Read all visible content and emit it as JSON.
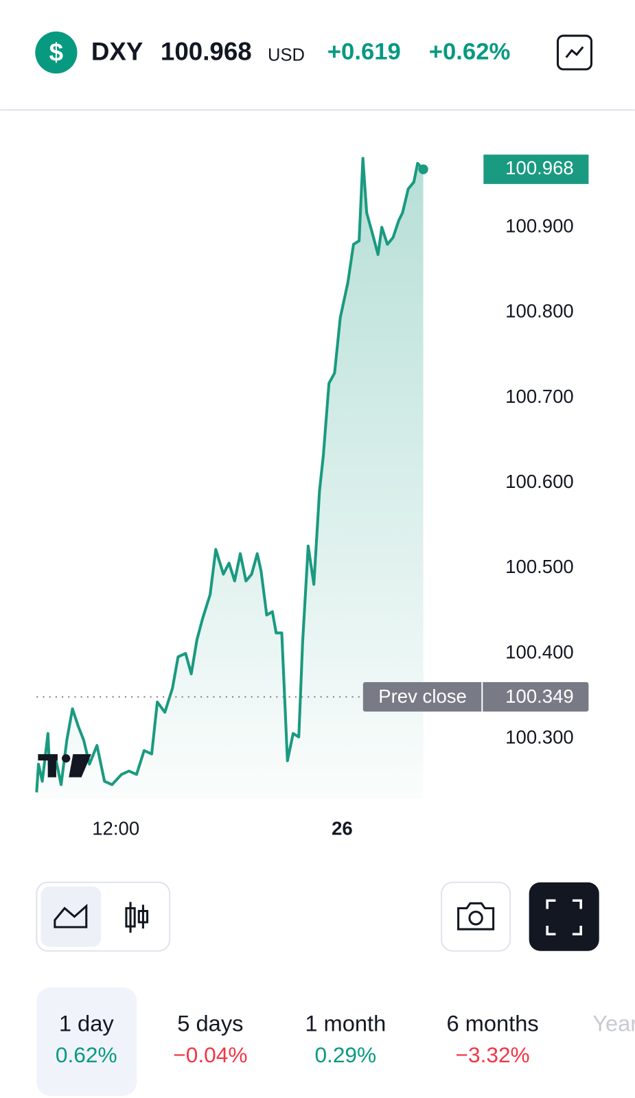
{
  "header": {
    "symbol": "DXY",
    "price": "100.968",
    "currency": "USD",
    "change": "+0.619",
    "change_pct": "+0.62%"
  },
  "chart_data": {
    "type": "line",
    "x": [
      7.8,
      7.9,
      8.1,
      8.4,
      8.5,
      8.8,
      9.1,
      9.4,
      9.7,
      10.0,
      10.3,
      10.6,
      11.0,
      11.4,
      11.8,
      12.3,
      12.7,
      13.1,
      13.5,
      13.9,
      14.2,
      14.6,
      15.0,
      15.3,
      15.7,
      16.0,
      16.3,
      16.6,
      17.0,
      17.3,
      17.7,
      18.0,
      18.3,
      18.6,
      18.9,
      19.2,
      19.5,
      19.7,
      20.0,
      20.3,
      20.5,
      20.8,
      21.1,
      21.4,
      21.7,
      21.9,
      22.2,
      22.5,
      22.8,
      23.0,
      23.3,
      23.6,
      23.9,
      24.3,
      24.6,
      24.9,
      25.1,
      25.3,
      25.6,
      25.9,
      26.1,
      26.4,
      26.7,
      27.0,
      27.2,
      27.5,
      27.8,
      28.0,
      28.3
    ],
    "series": [
      {
        "color": "#1a9a80",
        "values": [
          100.237,
          100.27,
          100.25,
          100.306,
          100.258,
          100.278,
          100.246,
          100.298,
          100.335,
          100.315,
          100.298,
          100.27,
          100.292,
          100.25,
          100.246,
          100.258,
          100.262,
          100.258,
          100.286,
          100.282,
          100.343,
          100.331,
          100.359,
          100.396,
          100.4,
          100.376,
          100.416,
          100.441,
          100.469,
          100.522,
          100.493,
          100.506,
          100.485,
          100.517,
          100.485,
          100.493,
          100.517,
          100.497,
          100.445,
          100.449,
          100.424,
          100.424,
          100.274,
          100.306,
          100.302,
          100.412,
          100.526,
          100.481,
          100.591,
          100.632,
          100.717,
          100.729,
          100.794,
          100.835,
          100.88,
          100.884,
          100.981,
          100.917,
          100.893,
          100.868,
          100.9,
          100.88,
          100.888,
          100.908,
          100.917,
          100.945,
          100.953,
          100.975,
          100.968
        ]
      }
    ],
    "xlim": [
      7.8,
      28.3
    ],
    "xticks": [
      {
        "value": 12,
        "label": "12:00"
      },
      {
        "value": 24,
        "label": "26"
      }
    ],
    "ylim": [
      100.23,
      100.99
    ],
    "yticks": [
      {
        "value": 100.3,
        "label": "100.300"
      },
      {
        "value": 100.4,
        "label": "100.400"
      },
      {
        "value": 100.5,
        "label": "100.500"
      },
      {
        "value": 100.6,
        "label": "100.600"
      },
      {
        "value": 100.7,
        "label": "100.700"
      },
      {
        "value": 100.8,
        "label": "100.800"
      },
      {
        "value": 100.9,
        "label": "100.900"
      }
    ],
    "prev_close": 100.349,
    "prev_close_label": "Prev close"
  },
  "periods": [
    {
      "label": "1 day",
      "change": "0.62%",
      "color": "#089981"
    },
    {
      "label": "5 days",
      "change": "−0.04%",
      "color": "#f23645"
    },
    {
      "label": "1 month",
      "change": "0.29%",
      "color": "#089981"
    },
    {
      "label": "6 months",
      "change": "−3.32%",
      "color": "#f23645"
    },
    {
      "label": "Year"
    }
  ]
}
